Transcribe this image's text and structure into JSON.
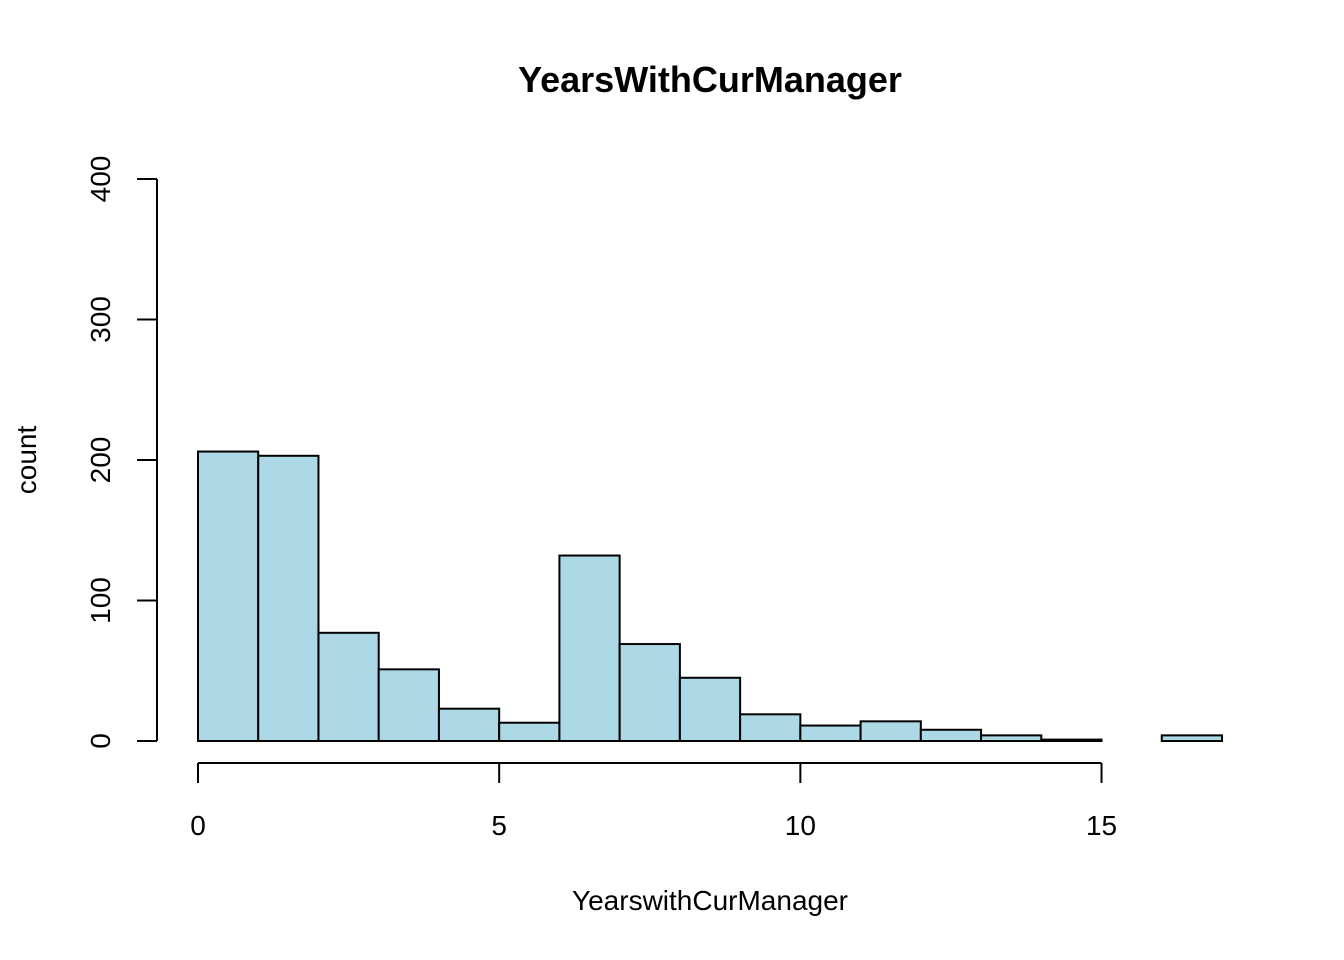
{
  "chart_data": {
    "type": "bar",
    "title": "YearsWithCurManager",
    "xlabel": "YearswithCurManager",
    "ylabel": "count",
    "bin_edges": [
      0,
      1,
      2,
      3,
      4,
      5,
      6,
      7,
      8,
      9,
      10,
      11,
      12,
      13,
      14,
      15,
      16,
      17
    ],
    "values": [
      206,
      203,
      77,
      51,
      23,
      13,
      132,
      69,
      45,
      19,
      11,
      14,
      8,
      4,
      1,
      0,
      4
    ],
    "xlim": [
      0,
      17
    ],
    "ylim": [
      0,
      400
    ],
    "x_ticks": [
      0,
      5,
      10,
      15
    ],
    "x_tick_labels": [
      "0",
      "5",
      "10",
      "15"
    ],
    "y_ticks": [
      0,
      100,
      200,
      300,
      400
    ],
    "y_tick_labels": [
      "0",
      "100",
      "200",
      "300",
      "400"
    ],
    "bar_color": "#add8e6",
    "grid": false
  }
}
